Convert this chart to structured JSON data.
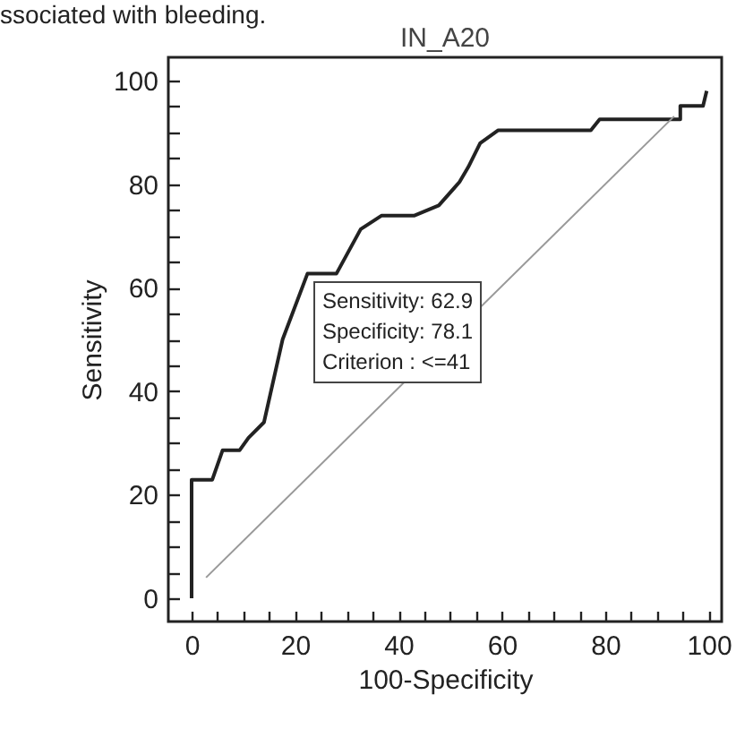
{
  "chart_data": {
    "type": "line",
    "title": "IN_A20",
    "xlabel": "100-Specificity",
    "ylabel": "Sensitivity",
    "annotations": [
      "ssociated with bleeding.",
      "Sensitivity: 62.9",
      "Specificity: 78.1",
      "Criterion : <=41"
    ],
    "series": [
      {
        "color": "#222222",
        "x": [
          0,
          0,
          4,
          6,
          9.3,
          11,
          14,
          17.6,
          22.4,
          28,
          32.7,
          36.7,
          43,
          47.8,
          51.8,
          53.5,
          55.8,
          59.3,
          77.2,
          78.9,
          94.5,
          94.5,
          98.9,
          99.6
        ],
        "values": [
          0,
          22.9,
          22.9,
          28.6,
          28.6,
          31,
          34,
          50,
          62.7,
          62.7,
          71.3,
          73.9,
          73.9,
          75.9,
          80.4,
          83.3,
          87.9,
          90.4,
          90.4,
          92.5,
          92.5,
          95.1,
          95.1,
          98
        ]
      },
      {
        "type": "line",
        "color": "#999999",
        "x": [
          2.8,
          93.3
        ],
        "values": [
          4,
          93.1
        ]
      }
    ],
    "xlim": [
      -4.5,
      102.5
    ],
    "ylim": [
      -4.5,
      104.5
    ],
    "xticks": [
      0,
      {
        "value": 5,
        "label": null
      },
      {
        "value": 10,
        "label": null
      },
      {
        "value": 15,
        "label": null
      },
      20,
      {
        "value": 25,
        "label": null
      },
      {
        "value": 30,
        "label": null
      },
      {
        "value": 35,
        "label": null
      },
      40,
      {
        "value": 45,
        "label": null
      },
      {
        "value": 50,
        "label": null
      },
      {
        "value": 55,
        "label": null
      },
      60,
      {
        "value": 65,
        "label": null
      },
      {
        "value": 70,
        "label": null
      },
      {
        "value": 75,
        "label": null
      },
      80,
      {
        "value": 85,
        "label": null
      },
      {
        "value": 90,
        "label": null
      },
      {
        "value": 95,
        "label": null
      },
      100
    ],
    "yticks": [
      0,
      {
        "value": 5,
        "label": null
      },
      {
        "value": 10,
        "label": null
      },
      {
        "value": 15,
        "label": null
      },
      20,
      {
        "value": 25,
        "label": null
      },
      {
        "value": 30,
        "label": null
      },
      {
        "value": 35,
        "label": null
      },
      40,
      {
        "value": 45,
        "label": null
      },
      {
        "value": 50,
        "label": null
      },
      {
        "value": 55,
        "label": null
      },
      60,
      {
        "value": 65,
        "label": null
      },
      {
        "value": 70,
        "label": null
      },
      {
        "value": 75,
        "label": null
      },
      80,
      {
        "value": 85,
        "label": null
      },
      {
        "value": 90,
        "label": null
      },
      {
        "value": 95,
        "label": null
      },
      100
    ]
  }
}
